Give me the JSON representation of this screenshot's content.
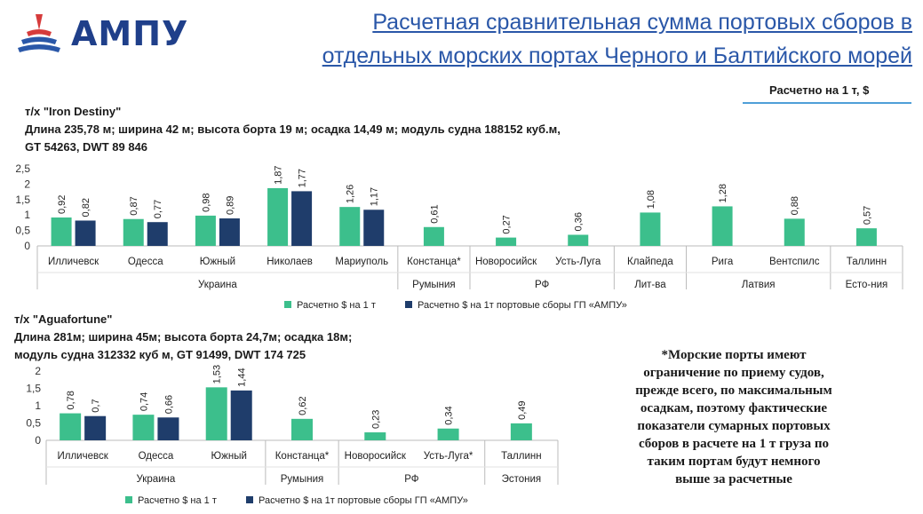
{
  "header": {
    "logo_text": "АМПУ",
    "title_line1": "Расчетная сравнительная сумма портовых сборов в",
    "title_line2": "отдельных морских портах Черного и Балтийского морей",
    "unit_label": "Расчетно на 1 т, $"
  },
  "ship1": {
    "name_line": "т/х \"Iron Destiny\"",
    "spec_line1": "Длина 235,78 м; ширина 42 м; высота борта 19 м; осадка 14,49 м; модуль судна 188152 куб.м,",
    "spec_line2": "GT 54263,  DWT 89 846"
  },
  "ship2": {
    "name_line": "т/х \"Aguafortune\"",
    "spec_line1": "Длина 281м; ширина 45м; высота борта 24,7м; осадка 18м;",
    "spec_line2": "модуль судна 312332 куб м, GT 91499, DWT 174 725"
  },
  "note": {
    "lines": [
      "*Морские порты имеют",
      "ограничение по приему судов,",
      "прежде всего, по максимальным",
      "осадкам, поэтому фактические",
      "показатели сумарных портовых",
      "сборов в расчете на 1 т груза по",
      "таким портам будут немного",
      "выше за расчетные"
    ]
  },
  "colors": {
    "series1": "#3cbf8c",
    "series2": "#1f3d6b",
    "title": "#2a57a8",
    "logo": "#1f3f8a"
  },
  "chart_data": [
    {
      "type": "bar",
      "ylim": [
        0,
        2.5
      ],
      "yticks": [
        "0",
        "0,5",
        "1",
        "1,5",
        "2",
        "2,5"
      ],
      "categories": [
        "Илличевск",
        "Одесса",
        "Южный",
        "Николаев",
        "Мариуполь",
        "Констанца*",
        "Новоросийск",
        "Усть-Луга",
        "Клайпеда",
        "Рига",
        "Вентспилс",
        "Таллинн"
      ],
      "groups": [
        {
          "label": "Украина",
          "count": 5
        },
        {
          "label": "Румыния",
          "count": 1
        },
        {
          "label": "РФ",
          "count": 2
        },
        {
          "label": "Лит-ва",
          "count": 1
        },
        {
          "label": "Латвия",
          "count": 2
        },
        {
          "label": "Есто-ния",
          "count": 1
        }
      ],
      "series": [
        {
          "name": "Расчетно   $ на 1 т",
          "values": [
            0.92,
            0.87,
            0.98,
            1.87,
            1.26,
            0.61,
            0.27,
            0.36,
            1.08,
            1.28,
            0.88,
            0.57
          ],
          "labels": [
            "0,92",
            "0,87",
            "0,98",
            "1,87",
            "1,26",
            "0,61",
            "0,27",
            "0,36",
            "1,08",
            "1,28",
            "0,88",
            "0,57"
          ]
        },
        {
          "name": "Расчетно $ на 1т портовые сборы ГП «АМПУ»",
          "values": [
            0.82,
            0.77,
            0.89,
            1.77,
            1.17,
            null,
            null,
            null,
            null,
            null,
            null,
            null
          ],
          "labels": [
            "0,82",
            "0,77",
            "0,89",
            "1,77",
            "1,17",
            "",
            "",
            "",
            "",
            "",
            "",
            ""
          ]
        }
      ]
    },
    {
      "type": "bar",
      "ylim": [
        0,
        2
      ],
      "yticks": [
        "0",
        "0,5",
        "1",
        "1,5",
        "2"
      ],
      "categories": [
        "Илличевск",
        "Одесса",
        "Южный",
        "Констанца*",
        "Новоросийск",
        "Усть-Луга*",
        "Таллинн"
      ],
      "groups": [
        {
          "label": "Украина",
          "count": 3
        },
        {
          "label": "Румыния",
          "count": 1
        },
        {
          "label": "РФ",
          "count": 2
        },
        {
          "label": "Эстония",
          "count": 1
        }
      ],
      "series": [
        {
          "name": "Расчетно   $ на 1 т",
          "values": [
            0.78,
            0.74,
            1.53,
            0.62,
            0.23,
            0.34,
            0.49
          ],
          "labels": [
            "0,78",
            "0,74",
            "1,53",
            "0,62",
            "0,23",
            "0,34",
            "0,49"
          ]
        },
        {
          "name": "Расчетно $ на 1т портовые сборы ГП «АМПУ»",
          "values": [
            0.7,
            0.66,
            1.44,
            null,
            null,
            null,
            null
          ],
          "labels": [
            "0,7",
            "0,66",
            "1,44",
            "",
            "",
            "",
            ""
          ]
        }
      ]
    }
  ]
}
